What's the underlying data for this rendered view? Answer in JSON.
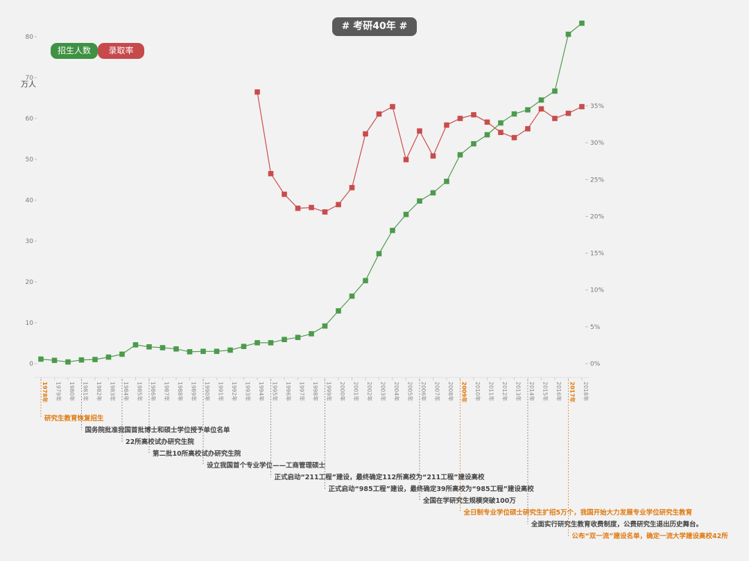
{
  "title": "# 考研40年 #",
  "legend": {
    "enroll_label": "招生人数",
    "rate_label": "录取率"
  },
  "colors": {
    "enroll": "#4c9a4c",
    "rate": "#c94c4c",
    "highlight": "#e07a10",
    "title_bg": "#5a5a5a"
  },
  "chart_data": {
    "type": "line",
    "y_unit_label": "万人",
    "y_left_ticks": [
      "0",
      "10",
      "20",
      "30",
      "40",
      "50",
      "60",
      "70",
      "80"
    ],
    "y_left_lim": [
      0,
      80
    ],
    "y_right_ticks": [
      "0%",
      "5%",
      "10%",
      "15%",
      "20%",
      "25%",
      "30%",
      "35%"
    ],
    "y_right_lim": [
      0,
      35
    ],
    "x_labels": [
      "1978年",
      "1979年",
      "1980年",
      "1981年",
      "1982年",
      "1983年",
      "1984年",
      "1985年",
      "1986年",
      "1987年",
      "1988年",
      "1989年",
      "1990年",
      "1991年",
      "1992年",
      "1993年",
      "1994年",
      "1995年",
      "1996年",
      "1997年",
      "1998年",
      "1999年",
      "2000年",
      "2001年",
      "2002年",
      "2003年",
      "2004年",
      "2005年",
      "2006年",
      "2007年",
      "2008年",
      "2009年",
      "2010年",
      "2011年",
      "2012年",
      "2013年",
      "2014年",
      "2015年",
      "2016年",
      "2017年",
      "2018年"
    ],
    "highlight_years": [
      "1978年",
      "2009年",
      "2017年"
    ],
    "series": [
      {
        "name": "招生人数",
        "axis": "left",
        "values": [
          1.1,
          0.8,
          0.4,
          0.9,
          1.0,
          1.6,
          2.3,
          4.6,
          4.1,
          3.9,
          3.6,
          2.9,
          3.0,
          3.0,
          3.3,
          4.2,
          5.1,
          5.1,
          5.9,
          6.4,
          7.3,
          9.2,
          12.9,
          16.5,
          20.3,
          26.9,
          32.6,
          36.5,
          39.8,
          41.8,
          44.6,
          51.1,
          53.8,
          56.0,
          58.9,
          61.1,
          62.1,
          64.5,
          66.7,
          80.6,
          83.3
        ]
      },
      {
        "name": "录取率",
        "axis": "right",
        "start_index": 16,
        "values": [
          36.9,
          25.8,
          23.0,
          21.1,
          21.2,
          20.6,
          21.6,
          23.9,
          31.2,
          33.9,
          34.9,
          27.7,
          31.6,
          28.2,
          32.4,
          33.3,
          33.8,
          32.8,
          31.4,
          30.7,
          31.9,
          34.6,
          33.3,
          34.0,
          34.9
        ]
      }
    ],
    "annotations": [
      {
        "year_index": 0,
        "text": "研究生教育恢复招生",
        "highlight": true
      },
      {
        "year_index": 3,
        "text": "国务院批准我国首批博士和硕士学位授予单位名单",
        "highlight": false
      },
      {
        "year_index": 6,
        "text": "22所高校试办研究生院",
        "highlight": false
      },
      {
        "year_index": 8,
        "text": "第二批10所高校试办研究生院",
        "highlight": false
      },
      {
        "year_index": 12,
        "text": "设立我国首个专业学位——工商管理硕士",
        "highlight": false
      },
      {
        "year_index": 17,
        "text": "正式启动“211工程”建设，最终确定112所高校为“211工程”建设高校",
        "highlight": false
      },
      {
        "year_index": 21,
        "text": "正式启动“985工程”建设，最终确定39所高校为“985工程”建设高校",
        "highlight": false
      },
      {
        "year_index": 28,
        "text": "全国在学研究生规模突破100万",
        "highlight": false
      },
      {
        "year_index": 31,
        "text": "全日制专业学位硕士研究生扩招5万个，我国开始大力发展专业学位研究生教育",
        "highlight": true
      },
      {
        "year_index": 36,
        "text": "全面实行研究生教育收费制度，公费研究生退出历史舞台。",
        "highlight": false
      },
      {
        "year_index": 39,
        "text": "公布“双一流”建设名单，确定一流大学建设高校42所",
        "highlight": true
      }
    ]
  }
}
